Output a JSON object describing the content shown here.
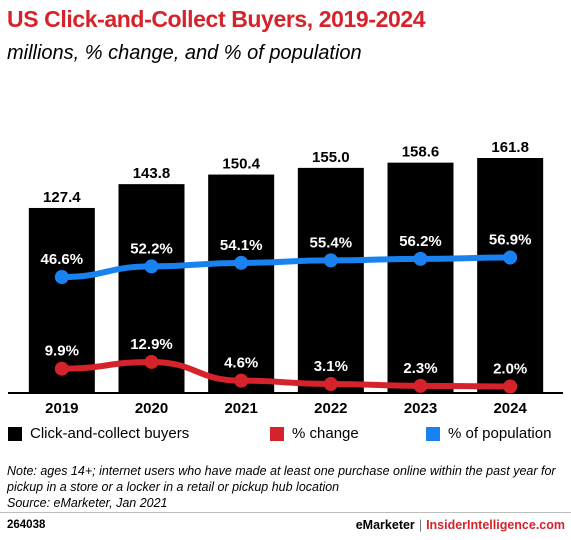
{
  "header": {
    "title": "US Click-and-Collect Buyers, 2019-2024",
    "subtitle": "millions, % change, and % of population"
  },
  "chart_data": {
    "type": "bar",
    "title": "US Click-and-Collect Buyers, 2019-2024",
    "subtitle": "millions, % change, and % of population",
    "categories": [
      "2019",
      "2020",
      "2021",
      "2022",
      "2023",
      "2024"
    ],
    "series": [
      {
        "name": "Click-and-collect buyers",
        "type": "bar",
        "color": "#000000",
        "values": [
          127.4,
          143.8,
          150.4,
          155.0,
          158.6,
          161.8
        ],
        "labels": [
          "127.4",
          "143.8",
          "150.4",
          "155.0",
          "158.6",
          "161.8"
        ]
      },
      {
        "name": "% change",
        "type": "line",
        "color": "#d6232b",
        "values": [
          9.9,
          12.9,
          4.6,
          3.1,
          2.3,
          2.0
        ],
        "labels": [
          "9.9%",
          "12.9%",
          "4.6%",
          "3.1%",
          "2.3%",
          "2.0%"
        ]
      },
      {
        "name": "% of population",
        "type": "line",
        "color": "#1a82f0",
        "values": [
          46.6,
          52.2,
          54.1,
          55.4,
          56.2,
          56.9
        ],
        "labels": [
          "46.6%",
          "52.2%",
          "54.1%",
          "55.4%",
          "56.2%",
          "56.9%"
        ]
      }
    ],
    "legend_position": "bottom",
    "grid": false
  },
  "legend": {
    "items": [
      {
        "label": "Click-and-collect buyers",
        "color": "#000000"
      },
      {
        "label": "% change",
        "color": "#d6232b"
      },
      {
        "label": "% of population",
        "color": "#1a82f0"
      }
    ]
  },
  "note": "Note: ages 14+; internet users who have made at least one purchase online within the past year for pickup in a store or a locker in a retail or pickup hub location",
  "source": "Source: eMarketer, Jan 2021",
  "footer": {
    "chart_id": "264038",
    "brand": "eMarketer",
    "separator": "|",
    "brand2": "InsiderIntelligence.com"
  }
}
